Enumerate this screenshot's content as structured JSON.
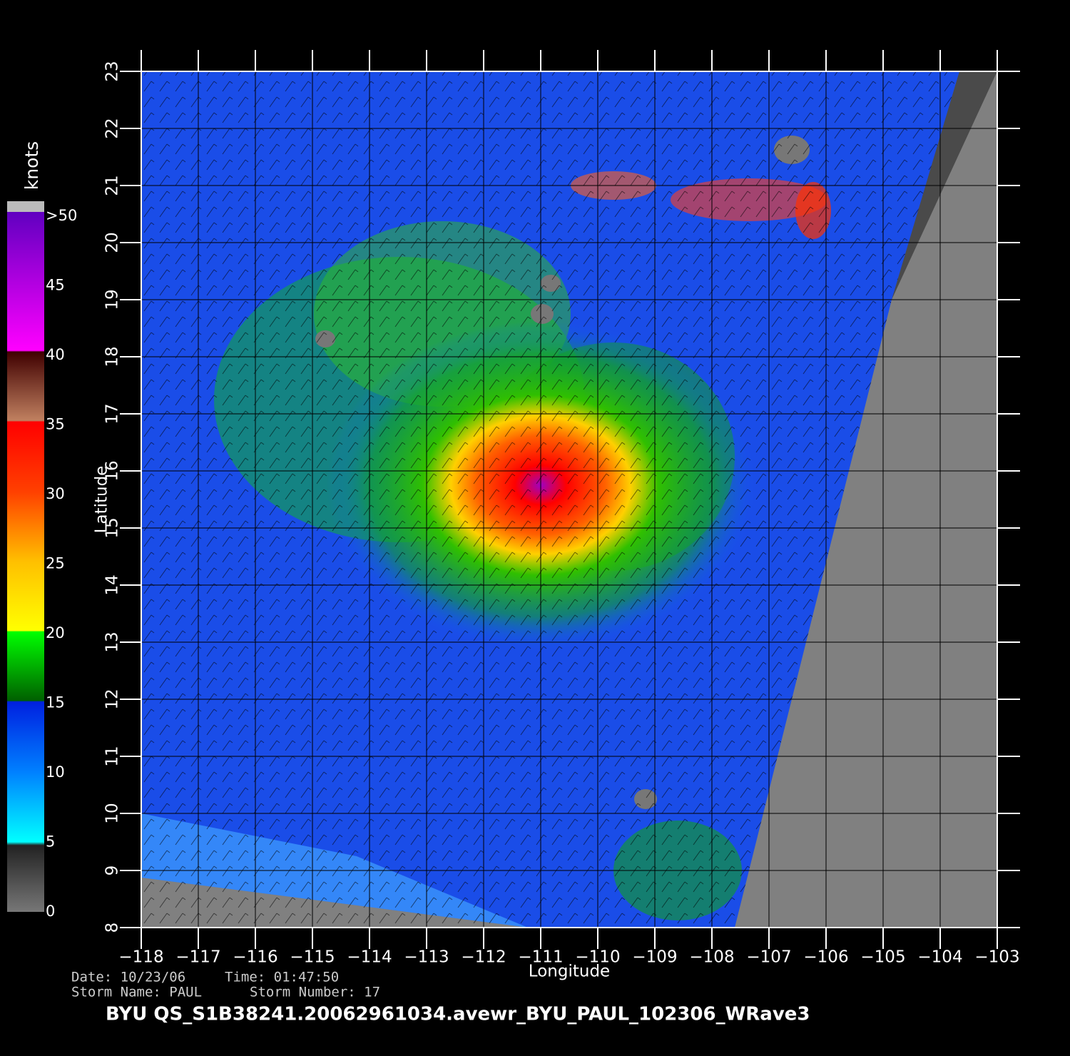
{
  "map": {
    "xlabel": "Longitude",
    "ylabel": "Latitude",
    "xlim": [
      -118,
      -103
    ],
    "ylim": [
      8,
      23
    ],
    "xticks": [
      {
        "value": -118,
        "label": "−118"
      },
      {
        "value": -117,
        "label": "−117"
      },
      {
        "value": -116,
        "label": "−116"
      },
      {
        "value": -115,
        "label": "−115"
      },
      {
        "value": -114,
        "label": "−114"
      },
      {
        "value": -113,
        "label": "−113"
      },
      {
        "value": -112,
        "label": "−112"
      },
      {
        "value": -111,
        "label": "−111"
      },
      {
        "value": -110,
        "label": "−110"
      },
      {
        "value": -109,
        "label": "−109"
      },
      {
        "value": -108,
        "label": "−108"
      },
      {
        "value": -107,
        "label": "−107"
      },
      {
        "value": -106,
        "label": "−106"
      },
      {
        "value": -105,
        "label": "−105"
      },
      {
        "value": -104,
        "label": "−104"
      },
      {
        "value": -103,
        "label": "−103"
      }
    ],
    "yticks": [
      8,
      9,
      10,
      11,
      12,
      13,
      14,
      15,
      16,
      17,
      18,
      19,
      20,
      21,
      22,
      23
    ],
    "grid": true,
    "colorbar": {
      "title": "knots",
      "lim": [
        0,
        50
      ],
      "ticks": [
        0,
        5,
        10,
        15,
        20,
        25,
        30,
        35,
        40,
        45,
        {
          "value": 50,
          "label": ">50"
        }
      ]
    },
    "info": [
      "Date: 10/23/06",
      "Time: 01:47:50",
      "Storm Name: PAUL",
      "Storm Number: 17"
    ],
    "filename": "BYU QS_S1B38241.20062961034.avewr_BYU_PAUL_102306_WRave3"
  }
}
